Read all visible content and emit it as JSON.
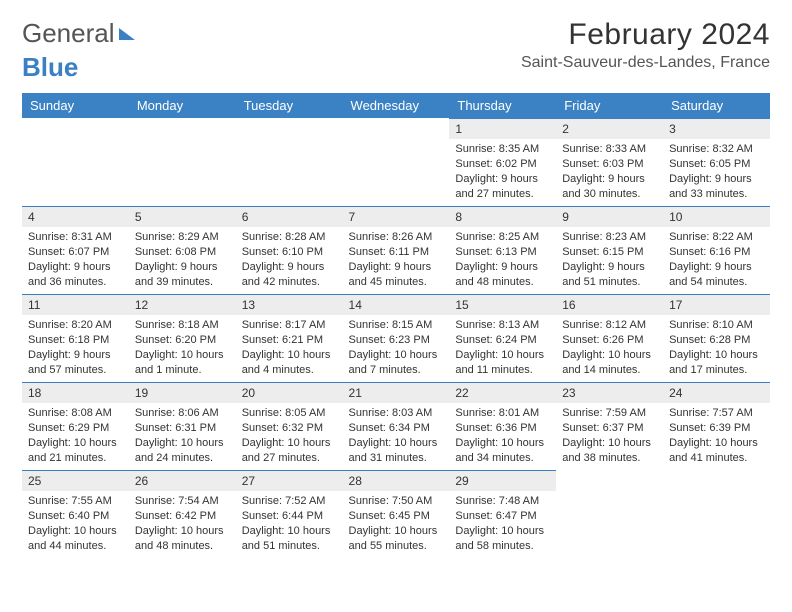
{
  "logo": {
    "general": "General",
    "blue": "Blue"
  },
  "title": "February 2024",
  "location": "Saint-Sauveur-des-Landes, France",
  "colors": {
    "header_bg": "#3b82c4",
    "header_text": "#ffffff",
    "daynum_bg": "#ededed",
    "border_top": "#3b7fc4",
    "background": "#ffffff",
    "text": "#333333"
  },
  "day_headers": [
    "Sunday",
    "Monday",
    "Tuesday",
    "Wednesday",
    "Thursday",
    "Friday",
    "Saturday"
  ],
  "weeks": [
    [
      null,
      null,
      null,
      null,
      {
        "n": "1",
        "sr": "Sunrise: 8:35 AM",
        "ss": "Sunset: 6:02 PM",
        "dl1": "Daylight: 9 hours",
        "dl2": "and 27 minutes."
      },
      {
        "n": "2",
        "sr": "Sunrise: 8:33 AM",
        "ss": "Sunset: 6:03 PM",
        "dl1": "Daylight: 9 hours",
        "dl2": "and 30 minutes."
      },
      {
        "n": "3",
        "sr": "Sunrise: 8:32 AM",
        "ss": "Sunset: 6:05 PM",
        "dl1": "Daylight: 9 hours",
        "dl2": "and 33 minutes."
      }
    ],
    [
      {
        "n": "4",
        "sr": "Sunrise: 8:31 AM",
        "ss": "Sunset: 6:07 PM",
        "dl1": "Daylight: 9 hours",
        "dl2": "and 36 minutes."
      },
      {
        "n": "5",
        "sr": "Sunrise: 8:29 AM",
        "ss": "Sunset: 6:08 PM",
        "dl1": "Daylight: 9 hours",
        "dl2": "and 39 minutes."
      },
      {
        "n": "6",
        "sr": "Sunrise: 8:28 AM",
        "ss": "Sunset: 6:10 PM",
        "dl1": "Daylight: 9 hours",
        "dl2": "and 42 minutes."
      },
      {
        "n": "7",
        "sr": "Sunrise: 8:26 AM",
        "ss": "Sunset: 6:11 PM",
        "dl1": "Daylight: 9 hours",
        "dl2": "and 45 minutes."
      },
      {
        "n": "8",
        "sr": "Sunrise: 8:25 AM",
        "ss": "Sunset: 6:13 PM",
        "dl1": "Daylight: 9 hours",
        "dl2": "and 48 minutes."
      },
      {
        "n": "9",
        "sr": "Sunrise: 8:23 AM",
        "ss": "Sunset: 6:15 PM",
        "dl1": "Daylight: 9 hours",
        "dl2": "and 51 minutes."
      },
      {
        "n": "10",
        "sr": "Sunrise: 8:22 AM",
        "ss": "Sunset: 6:16 PM",
        "dl1": "Daylight: 9 hours",
        "dl2": "and 54 minutes."
      }
    ],
    [
      {
        "n": "11",
        "sr": "Sunrise: 8:20 AM",
        "ss": "Sunset: 6:18 PM",
        "dl1": "Daylight: 9 hours",
        "dl2": "and 57 minutes."
      },
      {
        "n": "12",
        "sr": "Sunrise: 8:18 AM",
        "ss": "Sunset: 6:20 PM",
        "dl1": "Daylight: 10 hours",
        "dl2": "and 1 minute."
      },
      {
        "n": "13",
        "sr": "Sunrise: 8:17 AM",
        "ss": "Sunset: 6:21 PM",
        "dl1": "Daylight: 10 hours",
        "dl2": "and 4 minutes."
      },
      {
        "n": "14",
        "sr": "Sunrise: 8:15 AM",
        "ss": "Sunset: 6:23 PM",
        "dl1": "Daylight: 10 hours",
        "dl2": "and 7 minutes."
      },
      {
        "n": "15",
        "sr": "Sunrise: 8:13 AM",
        "ss": "Sunset: 6:24 PM",
        "dl1": "Daylight: 10 hours",
        "dl2": "and 11 minutes."
      },
      {
        "n": "16",
        "sr": "Sunrise: 8:12 AM",
        "ss": "Sunset: 6:26 PM",
        "dl1": "Daylight: 10 hours",
        "dl2": "and 14 minutes."
      },
      {
        "n": "17",
        "sr": "Sunrise: 8:10 AM",
        "ss": "Sunset: 6:28 PM",
        "dl1": "Daylight: 10 hours",
        "dl2": "and 17 minutes."
      }
    ],
    [
      {
        "n": "18",
        "sr": "Sunrise: 8:08 AM",
        "ss": "Sunset: 6:29 PM",
        "dl1": "Daylight: 10 hours",
        "dl2": "and 21 minutes."
      },
      {
        "n": "19",
        "sr": "Sunrise: 8:06 AM",
        "ss": "Sunset: 6:31 PM",
        "dl1": "Daylight: 10 hours",
        "dl2": "and 24 minutes."
      },
      {
        "n": "20",
        "sr": "Sunrise: 8:05 AM",
        "ss": "Sunset: 6:32 PM",
        "dl1": "Daylight: 10 hours",
        "dl2": "and 27 minutes."
      },
      {
        "n": "21",
        "sr": "Sunrise: 8:03 AM",
        "ss": "Sunset: 6:34 PM",
        "dl1": "Daylight: 10 hours",
        "dl2": "and 31 minutes."
      },
      {
        "n": "22",
        "sr": "Sunrise: 8:01 AM",
        "ss": "Sunset: 6:36 PM",
        "dl1": "Daylight: 10 hours",
        "dl2": "and 34 minutes."
      },
      {
        "n": "23",
        "sr": "Sunrise: 7:59 AM",
        "ss": "Sunset: 6:37 PM",
        "dl1": "Daylight: 10 hours",
        "dl2": "and 38 minutes."
      },
      {
        "n": "24",
        "sr": "Sunrise: 7:57 AM",
        "ss": "Sunset: 6:39 PM",
        "dl1": "Daylight: 10 hours",
        "dl2": "and 41 minutes."
      }
    ],
    [
      {
        "n": "25",
        "sr": "Sunrise: 7:55 AM",
        "ss": "Sunset: 6:40 PM",
        "dl1": "Daylight: 10 hours",
        "dl2": "and 44 minutes."
      },
      {
        "n": "26",
        "sr": "Sunrise: 7:54 AM",
        "ss": "Sunset: 6:42 PM",
        "dl1": "Daylight: 10 hours",
        "dl2": "and 48 minutes."
      },
      {
        "n": "27",
        "sr": "Sunrise: 7:52 AM",
        "ss": "Sunset: 6:44 PM",
        "dl1": "Daylight: 10 hours",
        "dl2": "and 51 minutes."
      },
      {
        "n": "28",
        "sr": "Sunrise: 7:50 AM",
        "ss": "Sunset: 6:45 PM",
        "dl1": "Daylight: 10 hours",
        "dl2": "and 55 minutes."
      },
      {
        "n": "29",
        "sr": "Sunrise: 7:48 AM",
        "ss": "Sunset: 6:47 PM",
        "dl1": "Daylight: 10 hours",
        "dl2": "and 58 minutes."
      },
      null,
      null
    ]
  ]
}
